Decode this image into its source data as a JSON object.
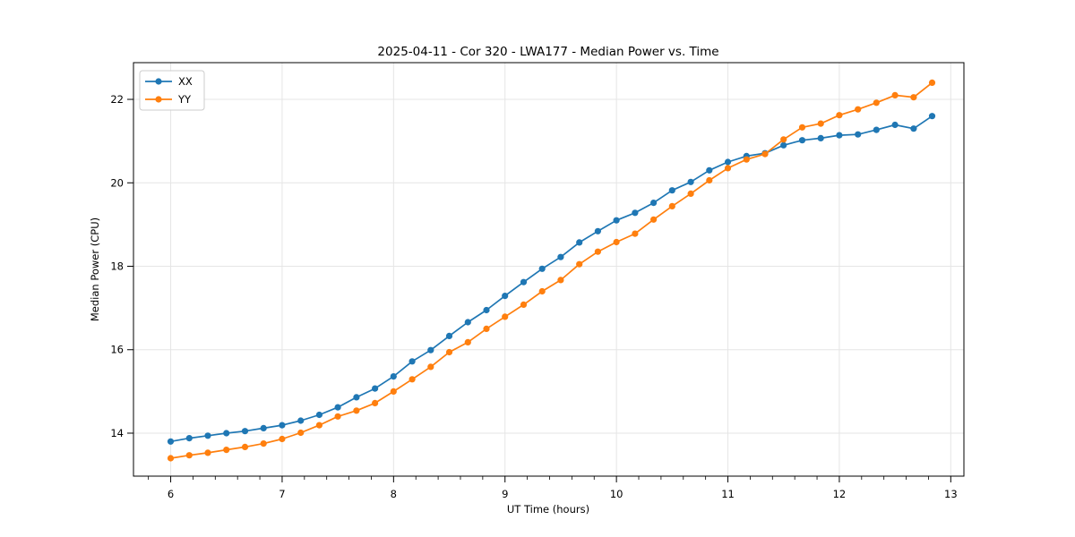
{
  "header": {
    "title": "2025-04-11 - Cor 320 - LWA177 - Median Power vs. Time"
  },
  "chart_data": {
    "type": "line",
    "title": "2025-04-11 - Cor 320 - LWA177 - Median Power vs. Time",
    "xlabel": "UT Time (hours)",
    "ylabel": "Median Power (CPU)",
    "xlim": [
      5.666,
      13.118
    ],
    "ylim": [
      12.97,
      22.88
    ],
    "x_major_ticks": [
      6,
      7,
      8,
      9,
      10,
      11,
      12,
      13
    ],
    "x_minor_step": 0.2,
    "y_major_ticks": [
      14,
      16,
      18,
      20,
      22
    ],
    "grid": true,
    "legend_position": "upper-left",
    "marker": "circle",
    "x": [
      6.0,
      6.167,
      6.333,
      6.5,
      6.667,
      6.833,
      7.0,
      7.167,
      7.333,
      7.5,
      7.667,
      7.833,
      8.0,
      8.167,
      8.333,
      8.5,
      8.667,
      8.833,
      9.0,
      9.167,
      9.333,
      9.5,
      9.667,
      9.833,
      10.0,
      10.167,
      10.333,
      10.5,
      10.667,
      10.833,
      11.0,
      11.167,
      11.333,
      11.5,
      11.667,
      11.833,
      12.0,
      12.167,
      12.333,
      12.5,
      12.667,
      12.833
    ],
    "series": [
      {
        "name": "XX",
        "color": "#1f77b4",
        "values": [
          13.8,
          13.88,
          13.94,
          14.0,
          14.05,
          14.12,
          14.19,
          14.3,
          14.44,
          14.62,
          14.86,
          15.07,
          15.36,
          15.72,
          15.99,
          16.33,
          16.66,
          16.95,
          17.29,
          17.62,
          17.94,
          18.22,
          18.57,
          18.84,
          19.1,
          19.28,
          19.52,
          19.82,
          20.02,
          20.3,
          20.5,
          20.64,
          20.71,
          20.9,
          21.02,
          21.07,
          21.14,
          21.16,
          21.27,
          21.39,
          21.3,
          21.6
        ]
      },
      {
        "name": "YY",
        "color": "#ff7f0e",
        "values": [
          13.4,
          13.47,
          13.53,
          13.6,
          13.67,
          13.75,
          13.86,
          14.01,
          14.19,
          14.4,
          14.54,
          14.72,
          15.0,
          15.29,
          15.59,
          15.94,
          16.18,
          16.5,
          16.79,
          17.08,
          17.4,
          17.67,
          18.05,
          18.35,
          18.58,
          18.78,
          19.12,
          19.44,
          19.74,
          20.06,
          20.35,
          20.56,
          20.69,
          21.04,
          21.33,
          21.42,
          21.62,
          21.76,
          21.92,
          22.1,
          22.05,
          22.4
        ]
      }
    ],
    "colors": {
      "grid": "#e5e5e5",
      "spine": "#000000",
      "legend_border": "#cccccc",
      "legend_bg": "#ffffff"
    }
  }
}
